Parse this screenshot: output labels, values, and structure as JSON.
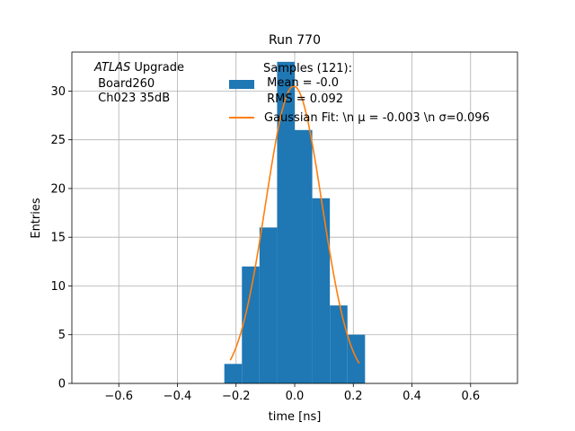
{
  "chart_data": {
    "type": "bar",
    "title": "Run 770",
    "xlabel": "time [ns]",
    "ylabel": "Entries",
    "xlim": [
      -0.76,
      0.76
    ],
    "ylim": [
      0,
      34
    ],
    "grid": true,
    "legend_placement": "top-right",
    "annotation": {
      "italic": "ATLAS",
      "line1_rest": " Upgrade",
      "line2": " Board260",
      "line3": " Ch023 35dB"
    },
    "histogram": {
      "color": "#1f77b4",
      "bin_edges": [
        -0.24,
        -0.18,
        -0.12,
        -0.06,
        0.0,
        0.06,
        0.12,
        0.18,
        0.24
      ],
      "values": [
        2,
        12,
        16,
        33,
        26,
        19,
        8,
        5
      ],
      "legend_lines": [
        "Samples (121):",
        " Mean = -0.0",
        " RMS = 0.092"
      ]
    },
    "gaussian_fit": {
      "color": "#ff7f0e",
      "mu": -0.003,
      "sigma": 0.096,
      "amplitude": 30.5,
      "x_range": [
        -0.22,
        0.22
      ],
      "legend": "Gaussian Fit: \\n μ = -0.003 \\n σ=0.096"
    },
    "x_ticks": [
      -0.6,
      -0.4,
      -0.2,
      0.0,
      0.2,
      0.4,
      0.6
    ],
    "x_tick_labels": [
      "−0.6",
      "−0.4",
      "−0.2",
      "0.0",
      "0.2",
      "0.4",
      "0.6"
    ],
    "y_ticks": [
      0,
      5,
      10,
      15,
      20,
      25,
      30
    ],
    "y_tick_labels": [
      "0",
      "5",
      "10",
      "15",
      "20",
      "25",
      "30"
    ]
  }
}
